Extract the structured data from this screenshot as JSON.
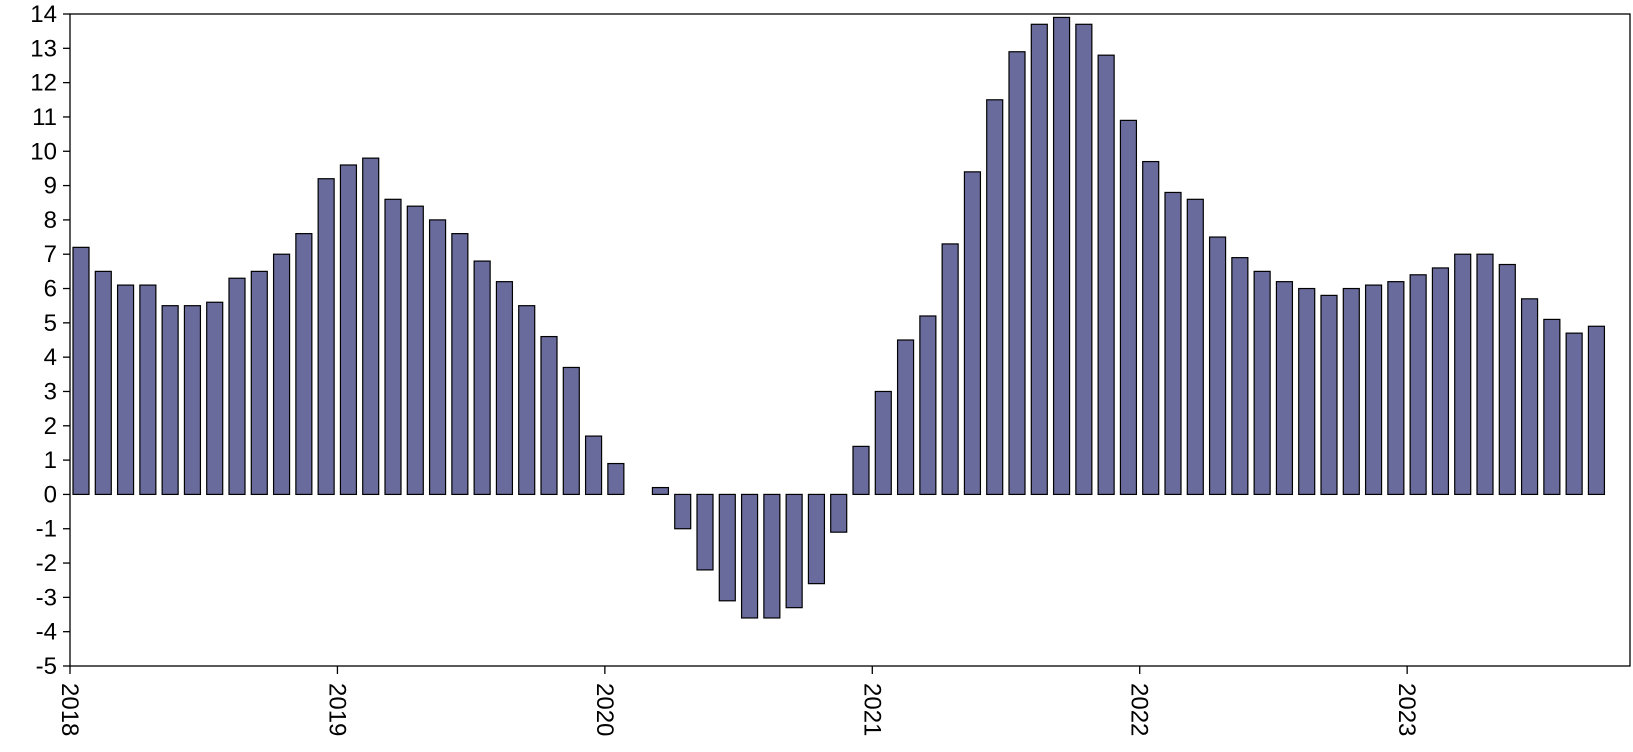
{
  "chart_data": {
    "type": "bar",
    "title": "",
    "xlabel": "",
    "ylabel": "",
    "ylim": [
      -5,
      14
    ],
    "yticks": [
      "14",
      "13",
      "12",
      "11",
      "10",
      "9",
      "8",
      "7",
      "6",
      "5",
      "4",
      "3",
      "2",
      "1",
      "0",
      "-1",
      "-2",
      "-3",
      "-4",
      "-5"
    ],
    "xticks": [
      "2018",
      "2019",
      "2020",
      "2021",
      "2022",
      "2023"
    ],
    "grid": false,
    "legend": "none",
    "bar_color": "#6a6b9d",
    "x": [
      "2018-01",
      "2018-02",
      "2018-03",
      "2018-04",
      "2018-05",
      "2018-06",
      "2018-07",
      "2018-08",
      "2018-09",
      "2018-10",
      "2018-11",
      "2018-12",
      "2019-01",
      "2019-02",
      "2019-03",
      "2019-04",
      "2019-05",
      "2019-06",
      "2019-07",
      "2019-08",
      "2019-09",
      "2019-10",
      "2019-11",
      "2019-12",
      "2020-01",
      "2020-02",
      "2020-03",
      "2020-04",
      "2020-05",
      "2020-06",
      "2020-07",
      "2020-08",
      "2020-09",
      "2020-10",
      "2020-11",
      "2020-12",
      "2021-01",
      "2021-02",
      "2021-03",
      "2021-04",
      "2021-05",
      "2021-06",
      "2021-07",
      "2021-08",
      "2021-09",
      "2021-10",
      "2021-11",
      "2021-12",
      "2022-01",
      "2022-02",
      "2022-03",
      "2022-04",
      "2022-05",
      "2022-06",
      "2022-07",
      "2022-08",
      "2022-09",
      "2022-10",
      "2022-11",
      "2022-12",
      "2023-01",
      "2023-02",
      "2023-03",
      "2023-04",
      "2023-05",
      "2023-06",
      "2023-07",
      "2023-08",
      "2023-09",
      "2023-10"
    ],
    "values": [
      7.2,
      6.5,
      6.1,
      6.1,
      5.5,
      5.5,
      5.6,
      6.3,
      6.5,
      7.0,
      7.6,
      9.2,
      9.6,
      9.8,
      8.6,
      8.4,
      8.0,
      7.6,
      6.8,
      6.2,
      5.5,
      4.6,
      3.7,
      1.7,
      0.9,
      0.0,
      0.2,
      -1.0,
      -2.2,
      -3.1,
      -3.6,
      -3.6,
      -3.3,
      -2.6,
      -1.1,
      1.4,
      3.0,
      4.5,
      5.2,
      7.3,
      9.4,
      11.5,
      12.9,
      13.7,
      13.9,
      13.7,
      12.8,
      10.9,
      9.7,
      8.8,
      8.6,
      7.5,
      6.9,
      6.5,
      6.2,
      6.0,
      5.8,
      6.0,
      6.1,
      6.2,
      6.4,
      6.6,
      7.0,
      7.0,
      6.7,
      5.7,
      5.1,
      4.7,
      4.9,
      null
    ]
  }
}
